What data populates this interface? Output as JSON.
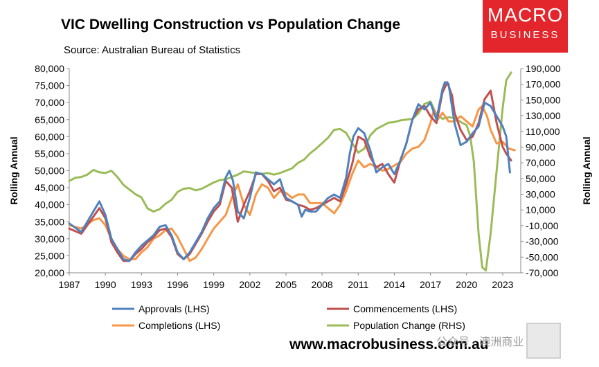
{
  "header": {
    "title": "VIC Dwelling Construction vs Population Change",
    "subtitle": "Source: Australian Bureau of Statistics"
  },
  "logo": {
    "line1": "MACRO",
    "line2": "BUSINESS"
  },
  "footer": {
    "url": "www.macrobusiness.com.au",
    "watermark": "公众号 · 澳洲商业"
  },
  "chart_data": {
    "type": "line",
    "grid": false,
    "legend_placement": "bottom",
    "ylabel_left": "Rolling Annual",
    "ylabel_right": "Rolling Annual",
    "x_ticks": [
      "1987",
      "1990",
      "1993",
      "1996",
      "1999",
      "2002",
      "2005",
      "2008",
      "2011",
      "2014",
      "2017",
      "2020",
      "2023"
    ],
    "xlim": [
      1987,
      2024.5
    ],
    "ylim_left": [
      20000,
      80000
    ],
    "ylim_right": [
      -70000,
      190000
    ],
    "y_ticks_left": [
      "20,000",
      "25,000",
      "30,000",
      "35,000",
      "40,000",
      "45,000",
      "50,000",
      "55,000",
      "60,000",
      "65,000",
      "70,000",
      "75,000",
      "80,000"
    ],
    "y_ticks_right": [
      "-70,000",
      "-50,000",
      "-30,000",
      "-10,000",
      "10,000",
      "30,000",
      "50,000",
      "70,000",
      "90,000",
      "110,000",
      "130,000",
      "150,000",
      "170,000",
      "190,000"
    ],
    "series": [
      {
        "name": "Approvals (LHS)",
        "axis": "left",
        "color": "#4f81bd",
        "x": [
          1987,
          1988,
          1988.5,
          1989,
          1989.5,
          1990,
          1990.5,
          1991,
          1991.5,
          1992,
          1992.5,
          1993,
          1993.5,
          1994,
          1994.5,
          1995,
          1995.5,
          1996,
          1996.5,
          1997,
          1997.5,
          1998,
          1998.5,
          1999,
          1999.5,
          2000,
          2000.3,
          2000.6,
          2001,
          2001.5,
          2002,
          2002.5,
          2003,
          2003.5,
          2004,
          2004.5,
          2005,
          2005.5,
          2006,
          2006.3,
          2006.6,
          2007,
          2007.5,
          2008,
          2008.5,
          2009,
          2009.5,
          2010,
          2010.3,
          2010.6,
          2011,
          2011.5,
          2012,
          2012.5,
          2013,
          2013.5,
          2014,
          2014.5,
          2015,
          2015.5,
          2016,
          2016.5,
          2017,
          2017.5,
          2018,
          2018.2,
          2018.5,
          2019,
          2019.5,
          2020,
          2020.5,
          2021,
          2021.5,
          2022,
          2022.5,
          2023,
          2023.3,
          2023.6
        ],
        "values": [
          34500,
          32000,
          35000,
          38000,
          41000,
          37000,
          30000,
          27000,
          24000,
          23500,
          26000,
          28000,
          29500,
          31000,
          33500,
          34000,
          31000,
          26000,
          24000,
          26000,
          29000,
          32000,
          36000,
          39000,
          41000,
          48000,
          50000,
          47000,
          38000,
          36000,
          42000,
          49500,
          49000,
          47500,
          46000,
          47500,
          42000,
          41000,
          40000,
          36500,
          38500,
          38000,
          38000,
          40000,
          42000,
          43000,
          42000,
          48000,
          55000,
          60000,
          62500,
          61000,
          56000,
          49500,
          51000,
          52000,
          49000,
          53000,
          58000,
          65000,
          69500,
          68000,
          70000,
          65000,
          74000,
          76000,
          75500,
          64000,
          57500,
          58500,
          61000,
          63000,
          70000,
          69000,
          66000,
          63000,
          60000,
          49500
        ]
      },
      {
        "name": "Commencements (LHS)",
        "axis": "left",
        "color": "#c0504d",
        "x": [
          1987,
          1988,
          1988.5,
          1989,
          1989.5,
          1990,
          1990.5,
          1991,
          1991.5,
          1992,
          1992.5,
          1993,
          1993.5,
          1994,
          1994.5,
          1995,
          1995.5,
          1996,
          1996.5,
          1997,
          1997.5,
          1998,
          1998.5,
          1999,
          1999.5,
          2000,
          2000.5,
          2001,
          2001.5,
          2002,
          2002.5,
          2003,
          2003.5,
          2004,
          2004.5,
          2005,
          2005.5,
          2006,
          2006.5,
          2007,
          2007.5,
          2008,
          2008.5,
          2009,
          2009.5,
          2010,
          2010.5,
          2011,
          2011.5,
          2012,
          2012.5,
          2013,
          2013.5,
          2014,
          2014.5,
          2015,
          2015.5,
          2016,
          2016.5,
          2017,
          2017.5,
          2018,
          2018.4,
          2018.8,
          2019,
          2019.5,
          2020,
          2020.5,
          2021,
          2021.5,
          2022,
          2022.5,
          2023,
          2023.3,
          2023.7
        ],
        "values": [
          33000,
          31500,
          34000,
          36500,
          39000,
          36000,
          29000,
          26000,
          23500,
          23500,
          25500,
          27000,
          29000,
          30500,
          32500,
          33000,
          30500,
          25500,
          24000,
          25500,
          28500,
          31500,
          35000,
          38000,
          40000,
          47000,
          45000,
          35000,
          40000,
          44000,
          49000,
          49000,
          47000,
          44000,
          45000,
          41500,
          41000,
          40000,
          39500,
          38500,
          39000,
          40000,
          41000,
          42000,
          41000,
          46000,
          52000,
          60000,
          59000,
          54000,
          51000,
          52000,
          49000,
          46500,
          53000,
          58000,
          65000,
          68000,
          69000,
          66000,
          64000,
          73000,
          76000,
          72000,
          67000,
          62000,
          59000,
          60000,
          64000,
          71000,
          73500,
          64000,
          57000,
          55000,
          53000
        ]
      },
      {
        "name": "Completions (LHS)",
        "axis": "left",
        "color": "#f79646",
        "x": [
          1987,
          1988,
          1989,
          1989.5,
          1990,
          1990.5,
          1991,
          1991.5,
          1992,
          1992.5,
          1993,
          1993.5,
          1994,
          1994.5,
          1995,
          1995.5,
          1996,
          1996.5,
          1997,
          1997.5,
          1998,
          1998.5,
          1999,
          1999.5,
          2000,
          2000.5,
          2001,
          2001.5,
          2002,
          2002.5,
          2003,
          2003.5,
          2004,
          2004.5,
          2005,
          2005.5,
          2006,
          2006.5,
          2007,
          2007.5,
          2008,
          2008.5,
          2009,
          2009.5,
          2010,
          2010.5,
          2011,
          2011.5,
          2012,
          2012.5,
          2013,
          2013.5,
          2014,
          2014.5,
          2015,
          2015.5,
          2016,
          2016.5,
          2017,
          2017.3,
          2017.6,
          2018,
          2018.5,
          2019,
          2019.5,
          2020,
          2020.5,
          2021,
          2021.3,
          2021.7,
          2022,
          2022.5,
          2023,
          2023.5,
          2024
        ],
        "values": [
          34000,
          33000,
          35500,
          36000,
          34000,
          30000,
          27000,
          25000,
          24000,
          24000,
          26000,
          27500,
          30000,
          31000,
          32500,
          33000,
          30500,
          27000,
          23500,
          24500,
          27000,
          30000,
          33000,
          35000,
          37000,
          42000,
          46000,
          40000,
          37000,
          43000,
          46000,
          45000,
          42000,
          44000,
          43500,
          42000,
          43000,
          43000,
          40500,
          40500,
          40500,
          39000,
          37500,
          40000,
          44000,
          49000,
          53000,
          51000,
          52000,
          51000,
          50000,
          50500,
          51500,
          52500,
          55000,
          56500,
          57000,
          59000,
          64000,
          68000,
          65000,
          67000,
          64500,
          64500,
          66000,
          64500,
          63000,
          68000,
          69000,
          66000,
          62000,
          58000,
          58500,
          56500,
          56000
        ]
      },
      {
        "name": "Population Change (RHS)",
        "axis": "right",
        "color": "#9bbb59",
        "x": [
          1987,
          1987.5,
          1988,
          1988.5,
          1989,
          1989.5,
          1990,
          1990.5,
          1991,
          1991.5,
          1992,
          1992.5,
          1993,
          1993.5,
          1994,
          1994.5,
          1995,
          1995.5,
          1996,
          1996.5,
          1997,
          1997.5,
          1998,
          1998.5,
          1999,
          1999.5,
          2000,
          2000.5,
          2001,
          2001.5,
          2002,
          2002.5,
          2003,
          2003.5,
          2004,
          2004.5,
          2005,
          2005.5,
          2006,
          2006.5,
          2007,
          2007.5,
          2008,
          2008.5,
          2009,
          2009.5,
          2010,
          2010.5,
          2011,
          2011.5,
          2012,
          2012.5,
          2013,
          2013.5,
          2014,
          2014.5,
          2015,
          2015.5,
          2016,
          2016.5,
          2017,
          2017.5,
          2018,
          2018.5,
          2019,
          2019.5,
          2020,
          2020.3,
          2020.6,
          2021,
          2021.3,
          2021.6,
          2022,
          2022.5,
          2023,
          2023.3,
          2023.7
        ],
        "values": [
          47000,
          51000,
          52000,
          55000,
          61000,
          58000,
          57000,
          60000,
          52000,
          42000,
          36000,
          30000,
          26000,
          12000,
          8000,
          11000,
          18000,
          23000,
          33000,
          37000,
          38000,
          35000,
          37000,
          41000,
          45000,
          48000,
          49000,
          52000,
          55000,
          59000,
          58000,
          57000,
          56000,
          57000,
          55000,
          57000,
          60000,
          63000,
          70000,
          74000,
          82000,
          88000,
          95000,
          102000,
          112000,
          113000,
          108000,
          95000,
          83000,
          88000,
          105000,
          113000,
          117000,
          121000,
          122000,
          124000,
          125000,
          126000,
          133000,
          145000,
          148000,
          132000,
          126000,
          128000,
          127000,
          122000,
          118000,
          104000,
          72000,
          -20000,
          -63000,
          -67000,
          -20000,
          60000,
          140000,
          175000,
          185000
        ]
      }
    ]
  }
}
